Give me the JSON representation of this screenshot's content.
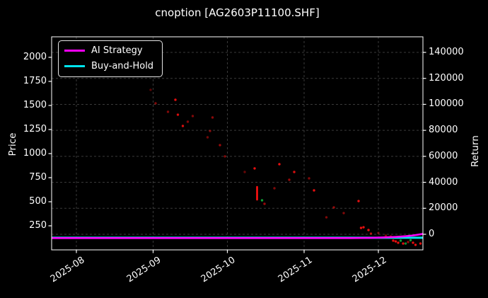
{
  "window_title": "cnoption [AG2603P11100.SHF]",
  "chart_data": {
    "type": "scatter",
    "title": "cnoption [AG2603P11100.SHF]",
    "style": "dark_background",
    "grid": "dashed, aligned to right (Return) axis ticks and month ticks",
    "legend_position": "upper left",
    "colors": {
      "background": "#000000",
      "text": "#ffffff",
      "frame": "#ffffff",
      "grid": "#3a3a3a",
      "red_dot": "#ff1111",
      "green_dot": "#0faf3c",
      "ai_strategy": "#ff00ff",
      "buy_and_hold": "#00e5ee"
    },
    "x_axis": {
      "tick_labels": [
        "2025-08",
        "2025-09",
        "2025-10",
        "2025-11",
        "2025-12"
      ],
      "tick_dates": [
        "2025-08-01",
        "2025-09-01",
        "2025-10-01",
        "2025-11-01",
        "2025-12-01"
      ],
      "range": [
        "2025-07-22",
        "2025-12-19"
      ]
    },
    "left_axis": {
      "label": "Price",
      "ticks": [
        250,
        500,
        750,
        1000,
        1250,
        1500,
        1750,
        2000
      ],
      "range": [
        0,
        2213
      ]
    },
    "right_axis": {
      "label": "Return",
      "ticks": [
        0,
        20000,
        40000,
        60000,
        80000,
        100000,
        120000,
        140000
      ],
      "range": [
        -12000,
        152000
      ]
    },
    "legend": [
      {
        "label": "AI Strategy",
        "color": "#ff00ff"
      },
      {
        "label": "Buy-and-Hold",
        "color": "#00e5ee"
      }
    ],
    "price_dots": [
      {
        "d": "2025-08-31",
        "p": 1662,
        "c": "red",
        "a": 0.35
      },
      {
        "d": "2025-09-02",
        "p": 1522,
        "c": "red",
        "a": 0.5
      },
      {
        "d": "2025-09-07",
        "p": 1434,
        "c": "red",
        "a": 0.5
      },
      {
        "d": "2025-09-10",
        "p": 1559,
        "c": "red",
        "a": 0.9
      },
      {
        "d": "2025-09-11",
        "p": 1404,
        "c": "red",
        "a": 0.85
      },
      {
        "d": "2025-09-13",
        "p": 1287,
        "c": "red",
        "a": 0.85
      },
      {
        "d": "2025-09-15",
        "p": 1331,
        "c": "red",
        "a": 0.5
      },
      {
        "d": "2025-09-17",
        "p": 1390,
        "c": "red",
        "a": 0.5
      },
      {
        "d": "2025-09-23",
        "p": 1169,
        "c": "red",
        "a": 0.45
      },
      {
        "d": "2025-09-24",
        "p": 1235,
        "c": "red",
        "a": 0.5
      },
      {
        "d": "2025-09-25",
        "p": 1375,
        "c": "red",
        "a": 0.55
      },
      {
        "d": "2025-09-28",
        "p": 1088,
        "c": "red",
        "a": 0.6
      },
      {
        "d": "2025-09-30",
        "p": 971,
        "c": "red",
        "a": 0.5
      },
      {
        "d": "2025-10-08",
        "p": 809,
        "c": "red",
        "a": 0.4
      },
      {
        "d": "2025-10-12",
        "p": 846,
        "c": "red",
        "a": 0.9
      },
      {
        "d": "2025-10-16",
        "p": 478,
        "c": "red",
        "a": 0.6
      },
      {
        "d": "2025-10-20",
        "p": 640,
        "c": "red",
        "a": 0.5
      },
      {
        "d": "2025-10-22",
        "p": 890,
        "c": "red",
        "a": 0.9
      },
      {
        "d": "2025-10-26",
        "p": 728,
        "c": "red",
        "a": 0.6
      },
      {
        "d": "2025-10-28",
        "p": 809,
        "c": "red",
        "a": 0.85
      },
      {
        "d": "2025-11-03",
        "p": 743,
        "c": "red",
        "a": 0.5
      },
      {
        "d": "2025-11-05",
        "p": 618,
        "c": "red",
        "a": 0.9
      },
      {
        "d": "2025-11-10",
        "p": 338,
        "c": "red",
        "a": 0.5
      },
      {
        "d": "2025-11-13",
        "p": 441,
        "c": "red",
        "a": 0.6
      },
      {
        "d": "2025-11-17",
        "p": 382,
        "c": "red",
        "a": 0.5
      },
      {
        "d": "2025-11-23",
        "p": 507,
        "c": "red",
        "a": 0.9
      },
      {
        "d": "2025-11-24",
        "p": 228,
        "c": "red",
        "a": 0.9
      },
      {
        "d": "2025-11-25",
        "p": 235,
        "c": "red",
        "a": 0.9
      },
      {
        "d": "2025-11-27",
        "p": 206,
        "c": "red",
        "a": 0.9
      },
      {
        "d": "2025-11-28",
        "p": 169,
        "c": "red",
        "a": 0.7
      },
      {
        "d": "2025-12-01",
        "p": 176,
        "c": "red",
        "a": 0.4
      },
      {
        "d": "2025-12-04",
        "p": 147,
        "c": "red",
        "a": 0.5
      },
      {
        "d": "2025-12-06",
        "p": 140,
        "c": "red",
        "a": 0.5
      },
      {
        "d": "2025-12-07",
        "p": 96,
        "c": "red",
        "a": 0.9
      },
      {
        "d": "2025-12-08",
        "p": 88,
        "c": "red",
        "a": 0.9
      },
      {
        "d": "2025-12-09",
        "p": 74,
        "c": "red",
        "a": 0.9
      },
      {
        "d": "2025-12-11",
        "p": 66,
        "c": "red",
        "a": 0.9
      },
      {
        "d": "2025-12-13",
        "p": 81,
        "c": "red",
        "a": 0.6
      },
      {
        "d": "2025-12-15",
        "p": 74,
        "c": "red",
        "a": 0.9
      },
      {
        "d": "2025-12-16",
        "p": 52,
        "c": "red",
        "a": 0.9
      },
      {
        "d": "2025-12-18",
        "p": 66,
        "c": "red",
        "a": 0.9
      },
      {
        "d": "2025-10-15",
        "p": 515,
        "c": "green",
        "a": 0.9
      },
      {
        "d": "2025-12-10",
        "p": 96,
        "c": "green",
        "a": 0.9
      },
      {
        "d": "2025-12-12",
        "p": 66,
        "c": "green",
        "a": 0.8
      },
      {
        "d": "2025-12-14",
        "p": 100,
        "c": "green",
        "a": 0.9
      }
    ],
    "price_spike": {
      "d": "2025-10-13",
      "high": 654,
      "low": 522,
      "c": "red"
    },
    "series": [
      {
        "name": "AI Strategy",
        "axis": "return",
        "color": "#ff00ff",
        "points": [
          {
            "d": "2025-07-22",
            "v": -2900
          },
          {
            "d": "2025-11-20",
            "v": -2900
          },
          {
            "d": "2025-11-28",
            "v": -2750
          },
          {
            "d": "2025-12-03",
            "v": -2450
          },
          {
            "d": "2025-12-08",
            "v": -2000
          },
          {
            "d": "2025-12-12",
            "v": -1500
          },
          {
            "d": "2025-12-15",
            "v": -900
          },
          {
            "d": "2025-12-19",
            "v": 300
          }
        ]
      },
      {
        "name": "Buy-and-Hold",
        "axis": "return",
        "color": "#00e5ee",
        "points": [
          {
            "d": "2025-07-22",
            "v": -2700
          },
          {
            "d": "2025-12-19",
            "v": -2700
          }
        ]
      }
    ]
  }
}
